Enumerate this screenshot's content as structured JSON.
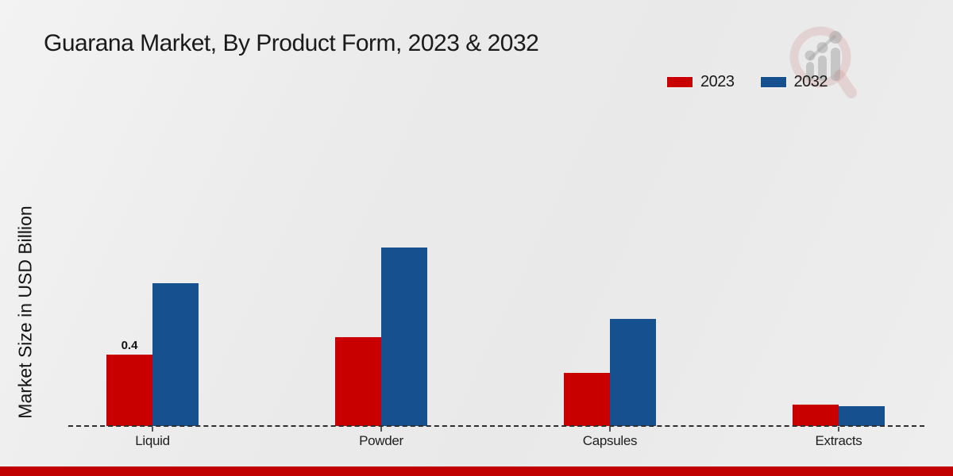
{
  "header": {
    "title": "Guarana Market, By Product Form, 2023 & 2032"
  },
  "legend": {
    "items": [
      {
        "label": "2023",
        "color": "#c80000"
      },
      {
        "label": "2032",
        "color": "#17508f"
      }
    ]
  },
  "chart_data": {
    "type": "bar",
    "title": "Guarana Market, By Product Form, 2023 & 2032",
    "categories": [
      "Liquid",
      "Powder",
      "Capsules",
      "Extracts"
    ],
    "series": [
      {
        "name": "2023",
        "color": "#c80000",
        "values": [
          0.4,
          0.5,
          0.3,
          0.12
        ]
      },
      {
        "name": "2032",
        "color": "#17508f",
        "values": [
          0.8,
          1.0,
          0.6,
          0.11
        ]
      }
    ],
    "xlabel": "",
    "ylabel": "Market Size in USD Billion",
    "ylim": [
      0,
      1.1
    ],
    "grid": false,
    "legend_position": "top-right",
    "baseline_style": "dashed",
    "bar_labels": [
      {
        "category_index": 0,
        "series_index": 0,
        "text": "0.4"
      }
    ]
  },
  "watermark_icon": "magnifier-bar-chart-logo",
  "footer": {
    "color": "#c00000"
  }
}
